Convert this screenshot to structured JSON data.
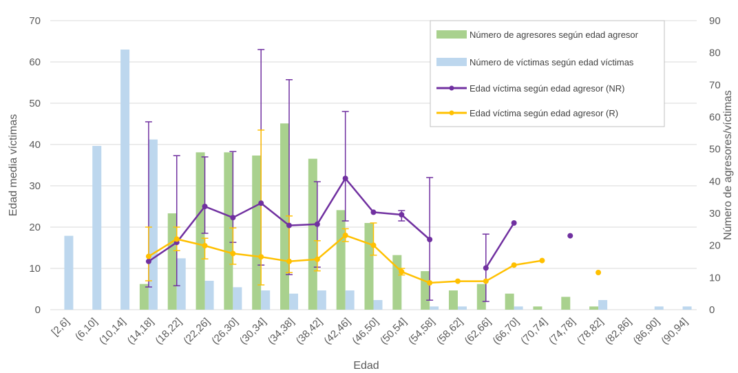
{
  "chart_data": {
    "type": "bar",
    "xlabel": "Edad",
    "ylabel_left": "Edad media víctimas",
    "ylabel_right": "Número de agresores/víctimas",
    "ylim_left": [
      0,
      70
    ],
    "yticks_left": [
      "0",
      "10",
      "20",
      "30",
      "40",
      "50",
      "60",
      "70"
    ],
    "ylim_right": [
      0,
      90
    ],
    "yticks_right": [
      "0",
      "10",
      "20",
      "30",
      "40",
      "50",
      "60",
      "70",
      "80",
      "90"
    ],
    "grid": true,
    "legend_position": "top-right",
    "categories": [
      "[2,6]",
      "(6,10]",
      "(10,14]",
      "(14,18]",
      "(18,22]",
      "(22,26]",
      "(26,30]",
      "(30,34]",
      "(34,38]",
      "(38,42]",
      "(42,46]",
      "(46,50]",
      "(50,54]",
      "(54,58]",
      "(58,62]",
      "(62,66]",
      "(66,70]",
      "(70,74]",
      "(74,78]",
      "(78,82]",
      "(82,86]",
      "(86,90]",
      "(90,94]"
    ],
    "bar_series": [
      {
        "name": "Número de agresores según edad agresor",
        "color": "#a9d18e",
        "values": [
          0,
          0,
          0,
          8,
          30,
          49,
          49,
          48,
          58,
          47,
          31,
          27,
          17,
          12,
          6,
          8,
          5,
          1,
          4,
          1,
          0,
          0,
          0
        ]
      },
      {
        "name": "Número de víctimas según edad víctimas",
        "color": "#bdd7ee",
        "values": [
          23,
          51,
          81,
          53,
          16,
          9,
          7,
          6,
          5,
          6,
          6,
          3,
          0,
          1,
          1,
          0,
          1,
          0,
          0,
          3,
          0,
          1,
          1
        ]
      }
    ],
    "line_series": [
      {
        "name": "Edad víctima según edad agresor (NR)",
        "color": "#7030a0",
        "values": [
          null,
          null,
          null,
          11.7,
          16.3,
          25,
          22.3,
          25.8,
          20.4,
          20.7,
          31.8,
          23.6,
          23,
          17,
          null,
          10.1,
          21,
          null,
          17.9,
          null,
          null,
          null,
          null
        ],
        "err_high": [
          null,
          null,
          null,
          45.5,
          37.3,
          37,
          38.3,
          63,
          55.7,
          31,
          48,
          null,
          24,
          32,
          null,
          18.3,
          null,
          null,
          null,
          null,
          null,
          null,
          null
        ],
        "err_low": [
          null,
          null,
          null,
          5.5,
          5.8,
          18.5,
          16.3,
          10.8,
          8.5,
          10.3,
          21.5,
          null,
          21.5,
          2.3,
          null,
          2,
          null,
          null,
          null,
          null,
          null,
          null,
          null
        ]
      },
      {
        "name": "Edad víctima según edad agresor (R)",
        "color": "#ffc000",
        "values": [
          null,
          null,
          null,
          12.9,
          17.1,
          15.5,
          13.6,
          12.8,
          11.7,
          12.2,
          18,
          15.6,
          9.2,
          6.5,
          6.9,
          6.9,
          10.8,
          11.9,
          null,
          9,
          null,
          null,
          null
        ],
        "err_high": [
          null,
          null,
          null,
          20,
          20,
          17.3,
          19.8,
          43.5,
          22.7,
          16.7,
          19.6,
          21,
          10,
          null,
          null,
          null,
          null,
          null,
          null,
          null,
          null,
          null,
          null
        ],
        "err_low": [
          null,
          null,
          null,
          7,
          14.3,
          12.3,
          11,
          6,
          9,
          9.4,
          16.5,
          13.2,
          8.4,
          null,
          null,
          null,
          null,
          null,
          null,
          null,
          null,
          null,
          null
        ]
      }
    ]
  }
}
